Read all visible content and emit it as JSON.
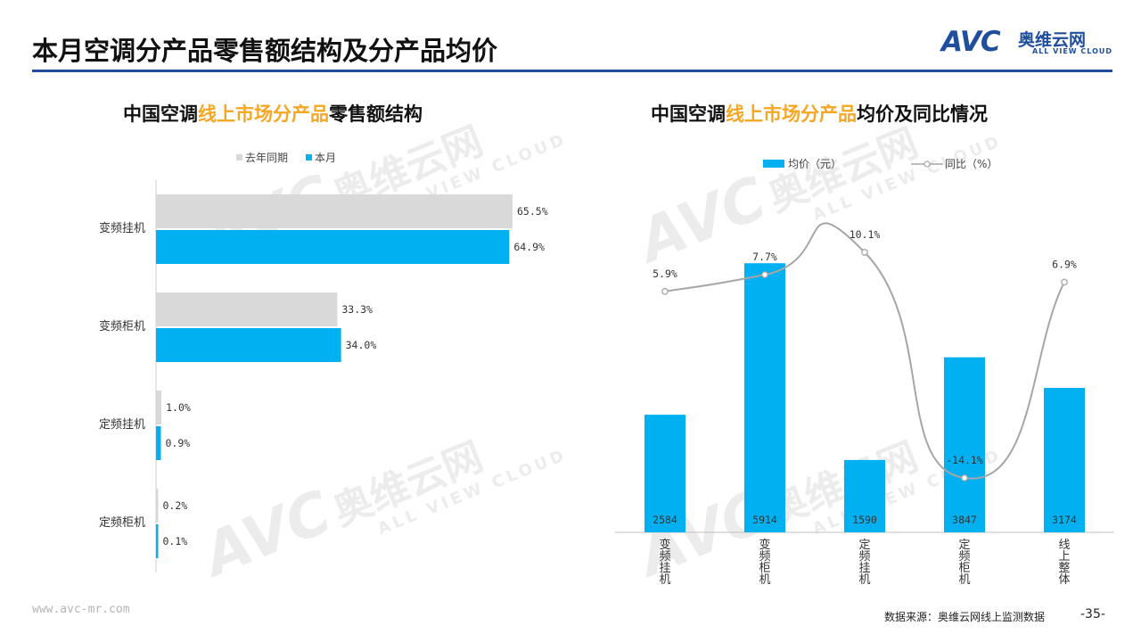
{
  "header": {
    "title": "本月空调分产品零售额结构及分产品均价",
    "logo_mark": "AVC",
    "logo_cn": "奥维云网",
    "logo_en": "ALL VIEW CLOUD"
  },
  "watermark": {
    "mark": "AVC",
    "cn": "奥维云网",
    "en": "ALL VIEW CLOUD"
  },
  "left_chart": {
    "title_a": "中国空调",
    "title_hl": "线上市场分产品",
    "title_b": "零售额结构",
    "legend_prev": "去年同期",
    "legend_curr": "本月",
    "colors": {
      "prev": "#d9d9d9",
      "curr": "#00b0f0"
    }
  },
  "right_chart": {
    "title_a": "中国空调",
    "title_hl": "线上市场分产品",
    "title_b": "均价及同比情况",
    "legend_bar": "均价（元）",
    "legend_line": "同比（%）",
    "colors": {
      "bar": "#00b0f0",
      "line": "#a6a6a6"
    }
  },
  "chart_data": [
    {
      "type": "bar",
      "orientation": "horizontal",
      "title": "中国空调线上市场分产品零售额结构",
      "categories": [
        "变频挂机",
        "变频柜机",
        "定频挂机",
        "定频柜机"
      ],
      "series": [
        {
          "name": "去年同期",
          "values": [
            65.5,
            33.3,
            1.0,
            0.2
          ],
          "labels": [
            "65.5%",
            "33.3%",
            "1.0%",
            "0.2%"
          ]
        },
        {
          "name": "本月",
          "values": [
            64.9,
            34.0,
            0.9,
            0.1
          ],
          "labels": [
            "64.9%",
            "34.0%",
            "0.9%",
            "0.1%"
          ]
        }
      ],
      "xlim": [
        0,
        70
      ],
      "legend": "top"
    },
    {
      "type": "bar+line",
      "title": "中国空调线上市场分产品均价及同比情况",
      "categories": [
        "变频挂机",
        "变频柜机",
        "定频挂机",
        "定频柜机",
        "线上整体"
      ],
      "bar_series": {
        "name": "均价（元）",
        "values": [
          2584,
          5914,
          1590,
          3847,
          3174
        ],
        "labels": [
          "2584",
          "5914",
          "1590",
          "3847",
          "3174"
        ]
      },
      "line_series": {
        "name": "同比（%）",
        "values": [
          5.9,
          7.7,
          10.1,
          -14.1,
          6.9
        ],
        "labels": [
          "5.9%",
          "7.7%",
          "10.1%",
          "-14.1%",
          "6.9%"
        ]
      },
      "bar_ylim": [
        0,
        6800
      ],
      "line_ylim": [
        -18,
        16
      ],
      "legend": "top"
    }
  ],
  "footer": {
    "url": "www.avc-mr.com",
    "source": "数据来源：奥维云网线上监测数据",
    "page": "-35-"
  }
}
